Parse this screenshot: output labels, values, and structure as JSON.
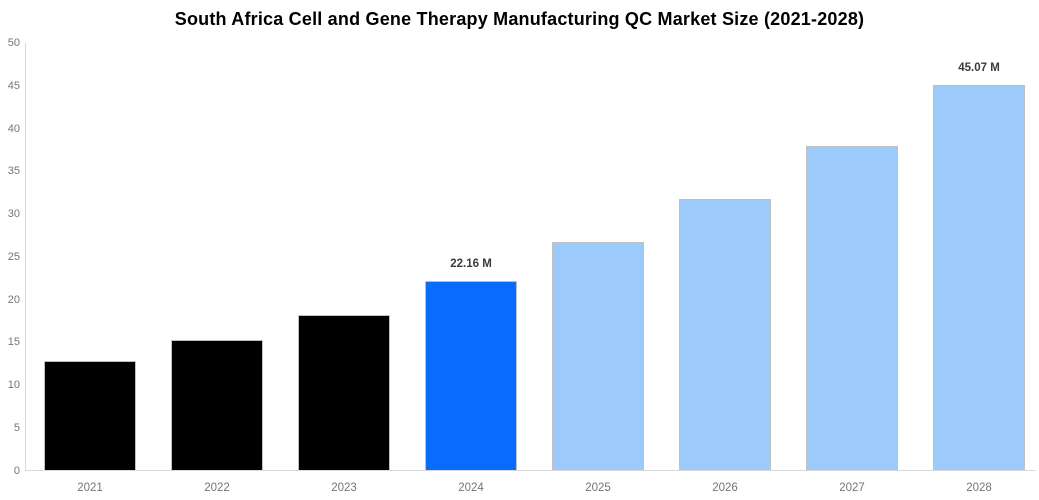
{
  "chart_data": {
    "type": "bar",
    "title": "South Africa Cell and Gene Therapy Manufacturing QC Market Size (2021-2028)",
    "xlabel": "",
    "ylabel": "",
    "categories": [
      "2021",
      "2022",
      "2023",
      "2024",
      "2025",
      "2026",
      "2027",
      "2028"
    ],
    "values": [
      12.8,
      15.3,
      18.2,
      22.16,
      26.7,
      31.8,
      37.9,
      45.07
    ],
    "bar_labels": [
      "",
      "",
      "",
      "22.16 M",
      "",
      "",
      "",
      "45.07 M"
    ],
    "bar_colors": [
      "#000000",
      "#000000",
      "#000000",
      "#0a6bff",
      "#9ccbfb",
      "#9ccbfb",
      "#9ccbfb",
      "#9ccbfb"
    ],
    "ylim": [
      0,
      50
    ],
    "yticks": [
      0,
      5,
      10,
      15,
      20,
      25,
      30,
      35,
      40,
      45,
      50
    ],
    "grid": false,
    "legend_position": "none",
    "units": "M",
    "style": {
      "title_color": "#000000",
      "tick_label_color": "#757575",
      "value_label_color": "#3b3b3b",
      "axis_line_color": "#d9d9d9",
      "bar_border_color": "#c0c0c0",
      "background_color": "#ffffff"
    }
  }
}
